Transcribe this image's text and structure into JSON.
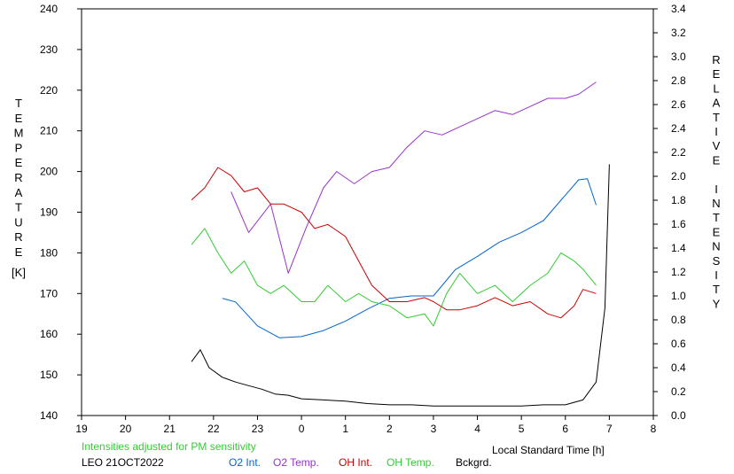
{
  "chart_data": {
    "type": "line",
    "xlabel": "Local Standard Time [h]",
    "x_ticks": [
      "19",
      "20",
      "21",
      "22",
      "23",
      "0",
      "1",
      "2",
      "3",
      "4",
      "5",
      "6",
      "7",
      "8"
    ],
    "xlim": [
      19,
      32
    ],
    "ylabel_left_letters": [
      "T",
      "E",
      "M",
      "P",
      "E",
      "R",
      "A",
      "T",
      "U",
      "R",
      "E"
    ],
    "ylabel_left_unit": "[K]",
    "ylim_left": [
      140,
      240
    ],
    "y_ticks_left": [
      "140",
      "150",
      "160",
      "170",
      "180",
      "190",
      "200",
      "210",
      "220",
      "230",
      "240"
    ],
    "ylabel_right_letters": [
      "R",
      "E",
      "L",
      "A",
      "T",
      "I",
      "V",
      "E",
      "",
      "I",
      "N",
      "T",
      "E",
      "N",
      "S",
      "I",
      "T",
      "Y"
    ],
    "ylim_right": [
      0,
      3.4
    ],
    "y_ticks_right": [
      "0.0",
      "0.2",
      "0.4",
      "0.6",
      "0.8",
      "1.0",
      "1.2",
      "1.4",
      "1.6",
      "1.8",
      "2.0",
      "2.2",
      "2.4",
      "2.6",
      "2.8",
      "3.0",
      "3.2",
      "3.4"
    ],
    "note": "Intensities adjusted for PM sensitivity",
    "station": "LEO 21OCT2022",
    "series": [
      {
        "name": "O2 Int.",
        "color": "#0066cc",
        "axis": "right",
        "x": [
          22.2,
          22.5,
          23.0,
          23.5,
          24.0,
          24.5,
          25.0,
          25.5,
          26.0,
          26.5,
          27.0,
          27.5,
          28.0,
          28.5,
          29.0,
          29.5,
          29.9,
          30.3,
          30.5,
          30.7
        ],
        "y": [
          0.98,
          0.95,
          0.75,
          0.65,
          0.66,
          0.71,
          0.79,
          0.89,
          0.98,
          1.0,
          1.0,
          1.22,
          1.33,
          1.45,
          1.53,
          1.63,
          1.8,
          1.97,
          1.98,
          1.76
        ]
      },
      {
        "name": "O2 Temp.",
        "color": "#9933cc",
        "axis": "left",
        "x": [
          22.4,
          22.8,
          23.3,
          23.7,
          24.1,
          24.5,
          24.8,
          25.2,
          25.6,
          26.0,
          26.4,
          26.8,
          27.2,
          27.6,
          28.0,
          28.4,
          28.8,
          29.2,
          29.6,
          30.0,
          30.3,
          30.7
        ],
        "y": [
          195,
          185,
          192,
          175,
          186,
          196,
          200,
          197,
          200,
          201,
          206,
          210,
          209,
          211,
          213,
          215,
          214,
          216,
          218,
          218,
          219,
          222
        ]
      },
      {
        "name": "OH Int.",
        "color": "#cc0000",
        "axis": "left",
        "x": [
          21.5,
          21.8,
          22.1,
          22.4,
          22.7,
          23.0,
          23.3,
          23.6,
          24.0,
          24.3,
          24.6,
          25.0,
          25.3,
          25.6,
          26.0,
          26.4,
          26.8,
          27.0,
          27.3,
          27.6,
          28.0,
          28.4,
          28.8,
          29.2,
          29.6,
          29.9,
          30.2,
          30.4,
          30.7
        ],
        "y": [
          193,
          196,
          201,
          199,
          195,
          196,
          192,
          192,
          190,
          186,
          187,
          184,
          178,
          172,
          168,
          168,
          169,
          168,
          166,
          166,
          167,
          169,
          167,
          168,
          165,
          164,
          167,
          171,
          170
        ]
      },
      {
        "name": "OH Temp.",
        "color": "#33cc33",
        "axis": "left",
        "x": [
          21.5,
          21.8,
          22.1,
          22.4,
          22.7,
          23.0,
          23.3,
          23.6,
          24.0,
          24.3,
          24.6,
          25.0,
          25.3,
          25.6,
          26.0,
          26.4,
          26.8,
          27.0,
          27.3,
          27.6,
          28.0,
          28.4,
          28.8,
          29.2,
          29.6,
          29.9,
          30.2,
          30.4,
          30.7
        ],
        "y": [
          182,
          186,
          180,
          175,
          178,
          172,
          170,
          172,
          168,
          168,
          172,
          168,
          170,
          168,
          167,
          164,
          165,
          162,
          170,
          175,
          170,
          172,
          168,
          172,
          175,
          180,
          178,
          176,
          172
        ]
      },
      {
        "name": "Bckgrd.",
        "color": "#000000",
        "axis": "right",
        "x": [
          21.5,
          21.7,
          21.9,
          22.2,
          22.5,
          22.8,
          23.1,
          23.4,
          23.7,
          24.0,
          24.5,
          25.0,
          25.5,
          26.0,
          26.5,
          27.0,
          27.5,
          28.0,
          28.5,
          29.0,
          29.5,
          30.0,
          30.4,
          30.7,
          30.9,
          31.0
        ],
        "y": [
          0.45,
          0.55,
          0.4,
          0.32,
          0.28,
          0.25,
          0.22,
          0.18,
          0.17,
          0.14,
          0.13,
          0.12,
          0.1,
          0.09,
          0.09,
          0.08,
          0.08,
          0.08,
          0.08,
          0.08,
          0.09,
          0.09,
          0.13,
          0.28,
          0.9,
          2.1
        ]
      }
    ]
  }
}
